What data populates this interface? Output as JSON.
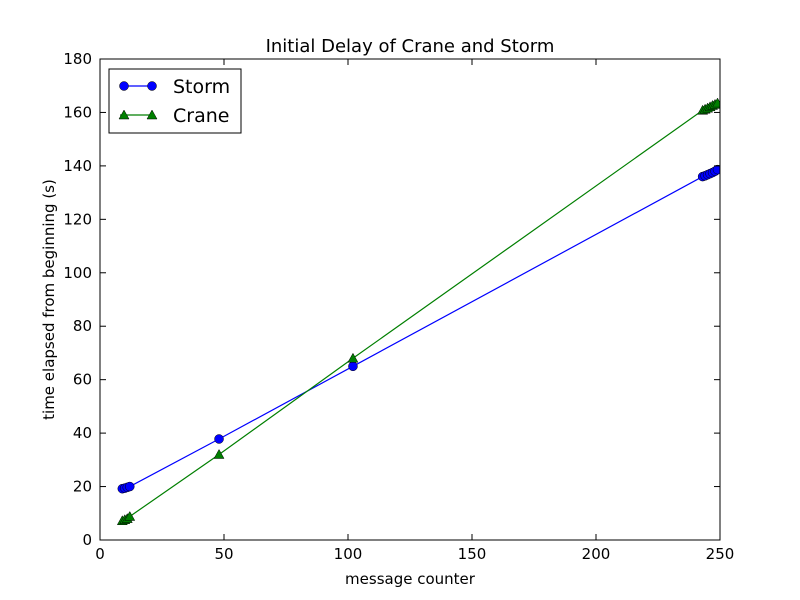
{
  "chart_data": {
    "type": "line",
    "title": "Initial Delay of Crane and Storm",
    "xlabel": "message counter",
    "ylabel": "time elapsed from beginning (s)",
    "xlim": [
      0,
      250
    ],
    "ylim": [
      0,
      180
    ],
    "x_ticks": [
      "0",
      "50",
      "100",
      "150",
      "200",
      "250"
    ],
    "y_ticks": [
      "0",
      "20",
      "40",
      "60",
      "80",
      "100",
      "120",
      "140",
      "160",
      "180"
    ],
    "grid": false,
    "legend_position": "top-left",
    "series": [
      {
        "name": "Storm",
        "color": "#0000ff",
        "marker": "circle",
        "points": [
          [
            9,
            19.2
          ],
          [
            10,
            19.4
          ],
          [
            11,
            19.7
          ],
          [
            12,
            20.0
          ],
          [
            48,
            37.8
          ],
          [
            102,
            65.0
          ],
          [
            243,
            136.0
          ],
          [
            244,
            136.3
          ],
          [
            245,
            136.7
          ],
          [
            246,
            137.1
          ],
          [
            247,
            137.5
          ],
          [
            248,
            138.0
          ],
          [
            249,
            138.6
          ]
        ]
      },
      {
        "name": "Crane",
        "color": "#007f00",
        "marker": "triangle",
        "points": [
          [
            9,
            7.2
          ],
          [
            10,
            7.6
          ],
          [
            11,
            8.0
          ],
          [
            12,
            8.8
          ],
          [
            48,
            32.0
          ],
          [
            102,
            68.0
          ],
          [
            243,
            160.8
          ],
          [
            244,
            161.2
          ],
          [
            245,
            161.6
          ],
          [
            246,
            162.1
          ],
          [
            247,
            162.6
          ],
          [
            248,
            163.0
          ],
          [
            249,
            163.5
          ]
        ]
      }
    ]
  }
}
